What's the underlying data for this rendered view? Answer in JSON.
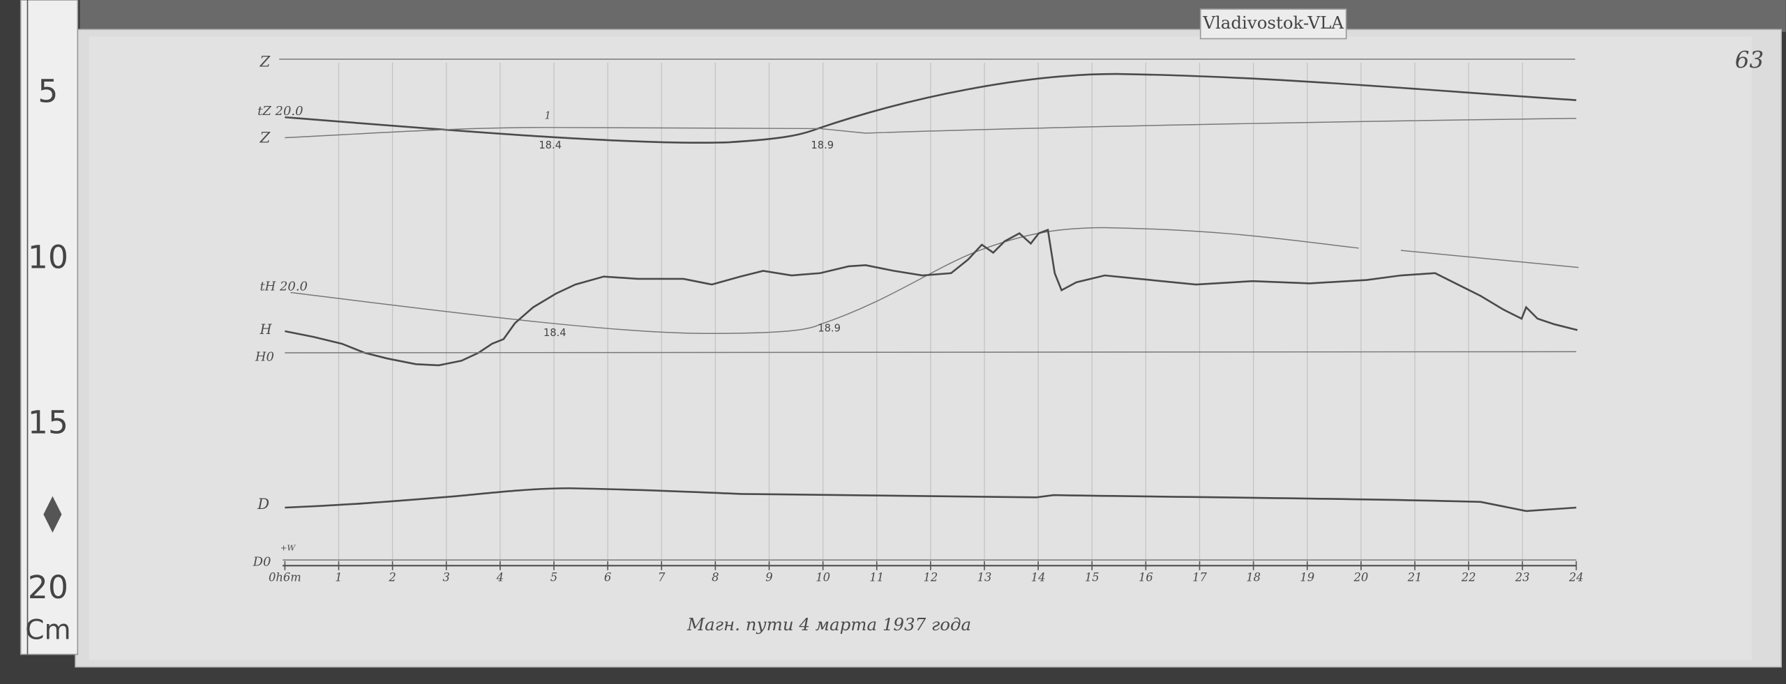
{
  "header": {
    "station": "Vladivostok-VLA",
    "page_number": "63"
  },
  "ruler": {
    "labels": [
      "5",
      "10",
      "15",
      "20"
    ],
    "unit": "Cm"
  },
  "trace_labels": {
    "z_top": "Z",
    "tz": "tZ 20.0",
    "z": "Z",
    "z_mark": "1",
    "z_min_1": "18.4",
    "z_min_2": "18.9",
    "th": "tH 20.0",
    "h": "H",
    "h0": "H0",
    "h_min_1": "18.4",
    "h_min_2": "18.9",
    "d": "D",
    "d0": "D0",
    "d0_sign": "+W"
  },
  "hours": [
    "0h6m",
    "1",
    "2",
    "3",
    "4",
    "5",
    "6",
    "7",
    "8",
    "9",
    "10",
    "11",
    "12",
    "13",
    "14",
    "15",
    "16",
    "17",
    "18",
    "19",
    "20",
    "21",
    "22",
    "23",
    "24"
  ],
  "caption": "Магн. пути 4 марта 1937 года"
}
